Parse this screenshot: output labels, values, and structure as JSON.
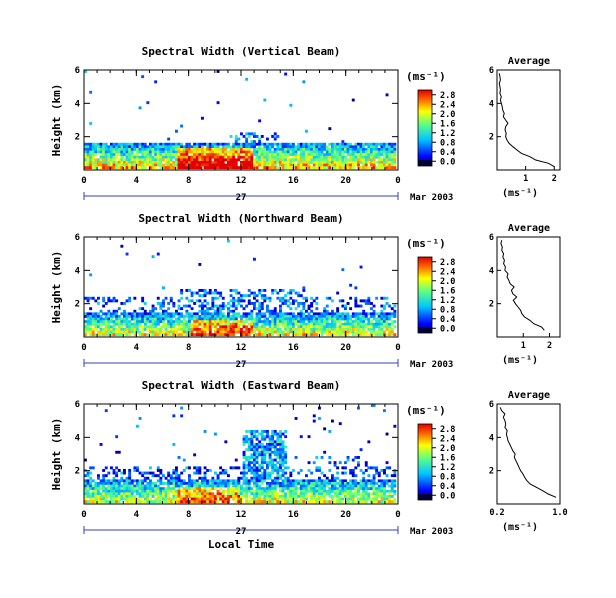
{
  "figure": {
    "xlabel": "Local Time",
    "date_label": "Mar 2003",
    "day_label": "27",
    "cbar_unit": "(ms⁻¹)",
    "avg_title": "Average",
    "avg_unit": "(ms⁻¹)",
    "ylabel": "Height (km)"
  },
  "chart_data": [
    {
      "type": "heatmap",
      "title": "Spectral Width (Vertical Beam)",
      "ylabel": "Height (km)",
      "xlabel": "",
      "x_ticks": [
        "0",
        "4",
        "8",
        "12",
        "16",
        "20",
        "0"
      ],
      "x_range_hours": [
        0,
        24
      ],
      "y_ticks": [
        "2",
        "4",
        "6"
      ],
      "y_range_km": [
        0,
        6
      ],
      "colorbar": {
        "label": "(ms⁻¹)",
        "ticks": [
          "0.0",
          "0.4",
          "0.8",
          "1.2",
          "1.6",
          "2.0",
          "2.4",
          "2.8"
        ],
        "range": [
          0,
          3.0
        ]
      },
      "description": "2-D height-time field of spectral width; dense echoes below about 1.6 km, sparse above.",
      "average": {
        "title": "Average",
        "xlabel": "(ms⁻¹)",
        "x_ticks": [
          "1",
          "2"
        ],
        "x_range": [
          0,
          2.2
        ],
        "y_range_km": [
          0,
          6
        ],
        "height_km": [
          0.2,
          0.4,
          0.6,
          0.8,
          1.0,
          1.2,
          1.4,
          1.6,
          1.8,
          2.0,
          2.2,
          2.4,
          2.6,
          2.8,
          3.0,
          3.2,
          3.4,
          3.6,
          3.8,
          4.0,
          4.2,
          4.4,
          4.6,
          4.8,
          5.0,
          5.2,
          5.4,
          5.6,
          5.8
        ],
        "width_ms": [
          2.0,
          1.8,
          1.35,
          1.15,
          0.85,
          0.7,
          0.55,
          0.42,
          0.35,
          0.3,
          0.32,
          0.28,
          0.3,
          0.38,
          0.3,
          0.22,
          0.25,
          0.2,
          0.18,
          0.15,
          0.12,
          0.15,
          0.1,
          0.12,
          0.1,
          0.08,
          0.12,
          0.1,
          0.08
        ]
      }
    },
    {
      "type": "heatmap",
      "title": "Spectral Width (Northward Beam)",
      "ylabel": "Height (km)",
      "xlabel": "",
      "x_ticks": [
        "0",
        "4",
        "8",
        "12",
        "16",
        "20",
        "0"
      ],
      "x_range_hours": [
        0,
        24
      ],
      "y_ticks": [
        "2",
        "4",
        "6"
      ],
      "y_range_km": [
        0,
        6
      ],
      "colorbar": {
        "label": "(ms⁻¹)",
        "ticks": [
          "0.0",
          "0.4",
          "0.8",
          "1.2",
          "1.6",
          "2.0",
          "2.4",
          "2.8"
        ],
        "range": [
          0,
          3.0
        ]
      },
      "description": "2-D height-time field of spectral width; dense echoes below about 1.5 km with patches up to 3 km.",
      "average": {
        "title": "Average",
        "xlabel": "(ms⁻¹)",
        "x_ticks": [
          "1",
          "2"
        ],
        "x_range": [
          0,
          2.4
        ],
        "y_range_km": [
          0,
          6
        ],
        "height_km": [
          0.4,
          0.6,
          0.8,
          1.0,
          1.2,
          1.4,
          1.6,
          1.8,
          2.0,
          2.2,
          2.4,
          2.6,
          2.8,
          3.0,
          3.2,
          3.4,
          3.6,
          3.8,
          4.0,
          4.2,
          4.4,
          4.6,
          4.8,
          5.0,
          5.2,
          5.4,
          5.6,
          5.8
        ],
        "width_ms": [
          1.8,
          1.7,
          1.4,
          1.25,
          1.05,
          0.95,
          0.9,
          0.8,
          0.7,
          0.62,
          0.75,
          0.6,
          0.55,
          0.65,
          0.5,
          0.45,
          0.38,
          0.42,
          0.3,
          0.32,
          0.25,
          0.28,
          0.22,
          0.25,
          0.18,
          0.2,
          0.15,
          0.18
        ]
      }
    },
    {
      "type": "heatmap",
      "title": "Spectral Width (Eastward Beam)",
      "ylabel": "Height (km)",
      "xlabel": "Local Time",
      "x_ticks": [
        "0",
        "4",
        "8",
        "12",
        "16",
        "20",
        "0"
      ],
      "x_range_hours": [
        0,
        24
      ],
      "y_ticks": [
        "2",
        "4",
        "6"
      ],
      "y_range_km": [
        0,
        6
      ],
      "colorbar": {
        "label": "(ms⁻¹)",
        "ticks": [
          "0.0",
          "0.4",
          "0.8",
          "1.2",
          "1.6",
          "2.0",
          "2.4",
          "2.8"
        ],
        "range": [
          0,
          3.0
        ]
      },
      "description": "2-D height-time field of spectral width; echoes below about 1.5 km and a tall plume near 12-15 h reaching about 4.5 km.",
      "average": {
        "title": "Average",
        "xlabel": "(ms⁻¹)",
        "x_ticks": [
          "0.2",
          "1.0"
        ],
        "x_range": [
          0.2,
          1.0
        ],
        "y_range_km": [
          0,
          6
        ],
        "height_km": [
          0.4,
          0.6,
          0.8,
          1.0,
          1.2,
          1.4,
          1.6,
          1.8,
          2.0,
          2.2,
          2.4,
          2.6,
          2.8,
          3.0,
          3.2,
          3.4,
          3.6,
          3.8,
          4.0,
          4.2,
          4.4,
          4.6,
          4.8,
          5.0,
          5.2,
          5.4,
          5.6,
          5.8
        ],
        "width_ms": [
          0.95,
          0.85,
          0.78,
          0.7,
          0.62,
          0.58,
          0.55,
          0.53,
          0.5,
          0.48,
          0.46,
          0.44,
          0.42,
          0.43,
          0.4,
          0.38,
          0.36,
          0.34,
          0.33,
          0.32,
          0.33,
          0.3,
          0.31,
          0.3,
          0.28,
          0.3,
          0.26,
          0.24
        ]
      }
    }
  ]
}
